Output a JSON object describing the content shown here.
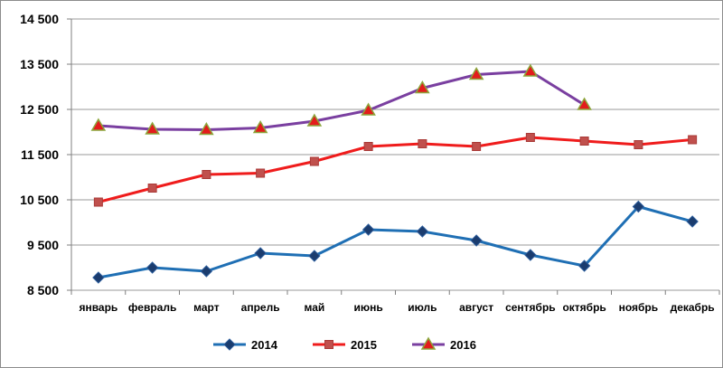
{
  "chart_data": {
    "type": "line",
    "title": "",
    "xlabel": "",
    "ylabel": "",
    "categories": [
      "январь",
      "февраль",
      "март",
      "апрель",
      "май",
      "июнь",
      "июль",
      "август",
      "сентябрь",
      "октябрь",
      "ноябрь",
      "декабрь"
    ],
    "ylim": [
      8500,
      14500
    ],
    "yticks": [
      8500,
      9500,
      10500,
      11500,
      12500,
      13500,
      14500
    ],
    "ytick_labels": [
      "8 500",
      "9 500",
      "10 500",
      "11 500",
      "12 500",
      "13 500",
      "14 500"
    ],
    "grid": true,
    "legend_position": "bottom",
    "series": [
      {
        "name": "2014",
        "color": "#1f6fb4",
        "marker": "diamond",
        "values": [
          8780,
          9000,
          8920,
          9320,
          9260,
          9840,
          9800,
          9600,
          9280,
          9040,
          10350,
          10020
        ]
      },
      {
        "name": "2015",
        "color": "#ef1c1c",
        "marker": "square",
        "values": [
          10450,
          10760,
          11060,
          11090,
          11350,
          11680,
          11740,
          11680,
          11880,
          11800,
          11720,
          11830
        ]
      },
      {
        "name": "2016",
        "color": "#7a3fa0",
        "marker": "triangle",
        "marker_fill": "#e31c1c",
        "marker_stroke": "#8ca63c",
        "values": [
          12140,
          12060,
          12050,
          12090,
          12240,
          12480,
          12970,
          13270,
          13340,
          12600,
          null,
          null
        ]
      }
    ]
  }
}
